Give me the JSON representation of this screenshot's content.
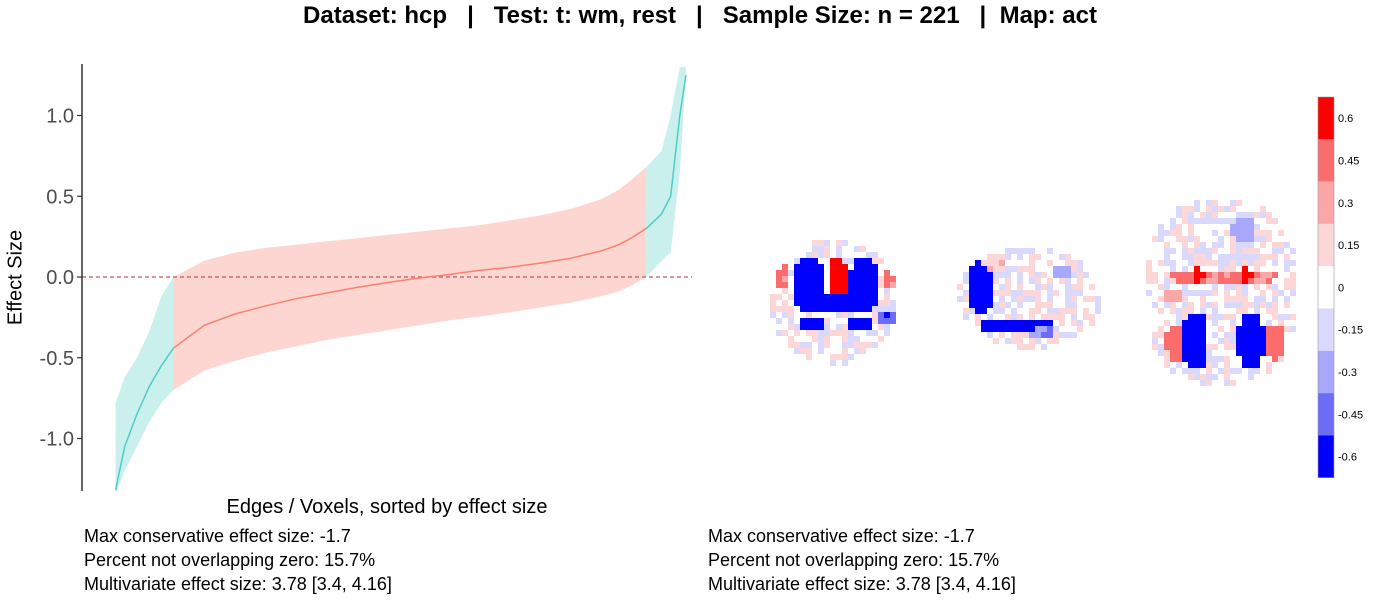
{
  "title": "Dataset: hcp   |   Test: t: wm, rest   |   Sample Size: n = 221   |  Map: act",
  "chart_data": [
    {
      "type": "area",
      "xlabel": "Edges / Voxels, sorted by effect size",
      "ylabel": "Effect Size",
      "xlim": [
        0,
        1
      ],
      "ylim": [
        -1.3,
        1.3
      ],
      "yticks": [
        "-1.0",
        "-0.5",
        "0.0",
        "0.5",
        "1.0"
      ],
      "reference_line": 0,
      "colors": {
        "not_overlapping_zero": "#4ecdc4",
        "overlapping_zero": "#fa8072",
        "reference_line": "#c25858"
      },
      "x": [
        0.055,
        0.07,
        0.09,
        0.11,
        0.13,
        0.15,
        0.2,
        0.25,
        0.3,
        0.35,
        0.4,
        0.45,
        0.5,
        0.55,
        0.6,
        0.65,
        0.7,
        0.75,
        0.8,
        0.85,
        0.88,
        0.9,
        0.925,
        0.95,
        0.965,
        0.98,
        0.99
      ],
      "series": [
        {
          "values": [
            -1.32,
            -1.05,
            -0.85,
            -0.68,
            -0.55,
            -0.44,
            -0.3,
            -0.23,
            -0.18,
            -0.135,
            -0.1,
            -0.065,
            -0.035,
            -0.008,
            0.015,
            0.04,
            0.06,
            0.085,
            0.115,
            0.16,
            0.2,
            0.24,
            0.3,
            0.39,
            0.5,
            1.0,
            1.25
          ]
        },
        {
          "lower": [
            -1.34,
            -1.2,
            -1.05,
            -0.9,
            -0.78,
            -0.7,
            -0.58,
            -0.52,
            -0.47,
            -0.43,
            -0.39,
            -0.36,
            -0.33,
            -0.3,
            -0.27,
            -0.245,
            -0.22,
            -0.19,
            -0.16,
            -0.12,
            -0.09,
            -0.055,
            0.0,
            0.1,
            0.15,
            0.65,
            1.25
          ],
          "upper": [
            -0.78,
            -0.62,
            -0.5,
            -0.34,
            -0.12,
            0.0,
            0.1,
            0.15,
            0.18,
            0.2,
            0.22,
            0.24,
            0.26,
            0.28,
            0.3,
            0.32,
            0.35,
            0.38,
            0.42,
            0.48,
            0.54,
            0.6,
            0.68,
            0.78,
            1.0,
            1.3,
            1.3
          ]
        }
      ],
      "stats": {
        "max_conservative": "Max conservative effect size: -1.7",
        "percent_not_overlapping": "Percent not overlapping zero: 15.7%",
        "multivariate": "Multivariate effect size: 3.78 [3.4, 4.16]"
      }
    },
    {
      "type": "heatmap",
      "colorbar": {
        "labels": [
          "0.6",
          "0.45",
          "0.3",
          "0.15",
          "0",
          "-0.15",
          "-0.3",
          "-0.45",
          "-0.6"
        ],
        "colors": [
          "#ff0000",
          "#fb6c6c",
          "#fca7a7",
          "#fdd7d7",
          "#ffffff",
          "#d9d9fd",
          "#a7a7fb",
          "#6c6cf8",
          "#0000ff"
        ]
      },
      "views": [
        "coronal",
        "sagittal",
        "axial"
      ],
      "stats": {
        "max_conservative": "Max conservative effect size: -1.7",
        "percent_not_overlapping": "Percent not overlapping zero: 15.7%",
        "multivariate": "Multivariate effect size: 3.78 [3.4, 4.16]"
      }
    }
  ]
}
